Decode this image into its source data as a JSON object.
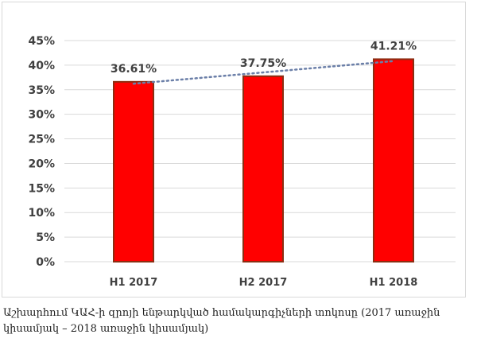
{
  "chart_data": {
    "type": "bar",
    "categories": [
      "H1 2017",
      "H2 2017",
      "H1 2018"
    ],
    "values": [
      36.61,
      37.75,
      41.21
    ],
    "data_labels": [
      "36.61%",
      "37.75%",
      "41.21%"
    ],
    "y_ticks": [
      "0%",
      "5%",
      "10%",
      "15%",
      "20%",
      "25%",
      "30%",
      "35%",
      "40%",
      "45%"
    ],
    "ylim": [
      0,
      45
    ],
    "y_unit": "%",
    "grid": true,
    "trendline": "linear, dotted",
    "colors": {
      "bar": "#ff0000",
      "bar_edge": "#8b2e12",
      "trendline": "#6b7fa8",
      "grid": "#d9d9d9",
      "text": "#404040"
    }
  },
  "caption": "Աշխարհում ԿԱՀ-ի զրոյի ենթարկված համակարգիչների տոկոսը (2017 առաջին կիսամյակ – 2018 առաջին կիսամյակ)"
}
